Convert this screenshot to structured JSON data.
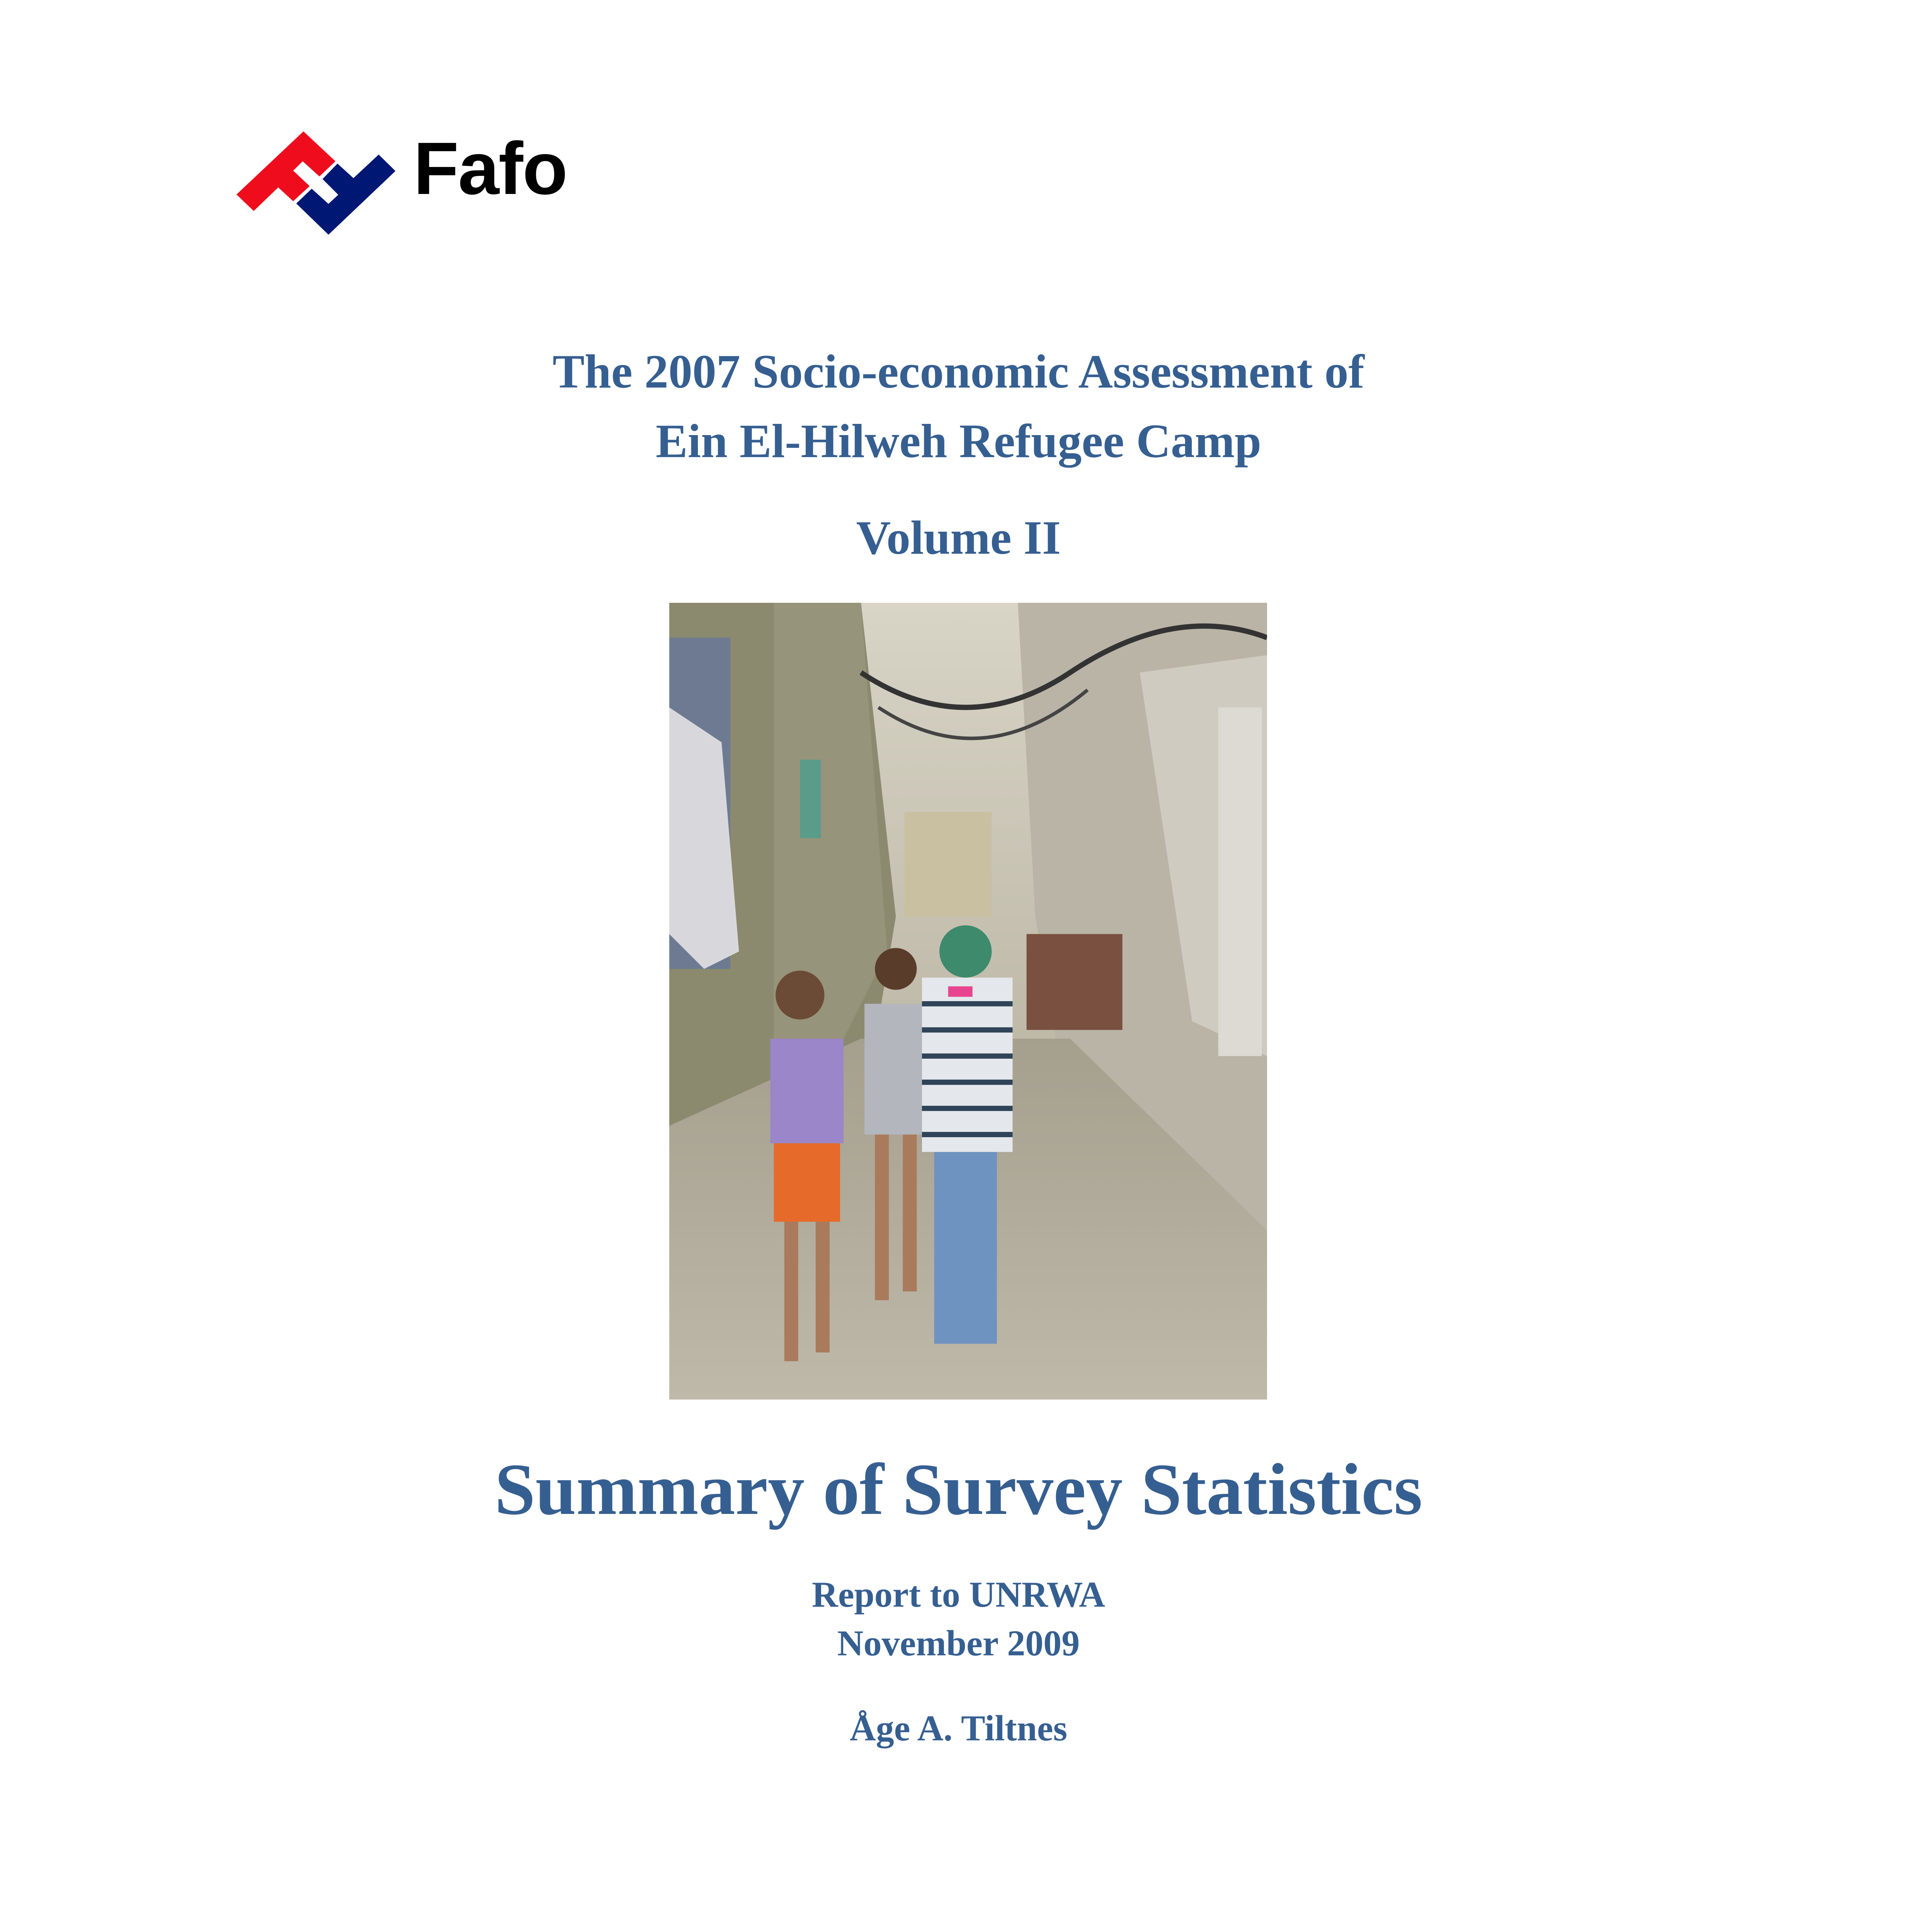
{
  "logo": {
    "text": "Fafo",
    "colors": {
      "red": "#ee0c1d",
      "blue": "#001774"
    }
  },
  "title": {
    "line1": "The 2007 Socio-economic Assessment of",
    "line2": "Ein El-Hilweh Refugee Camp",
    "volume": "Volume II"
  },
  "photo": {
    "description_icon": "photo-children-in-camp-alley"
  },
  "subtitle": "Summary of Survey Statistics",
  "report": {
    "line1": "Report to UNRWA",
    "line2": "November 2009"
  },
  "author": "Åge A. Tiltnes",
  "colors": {
    "heading": "#365f91"
  }
}
